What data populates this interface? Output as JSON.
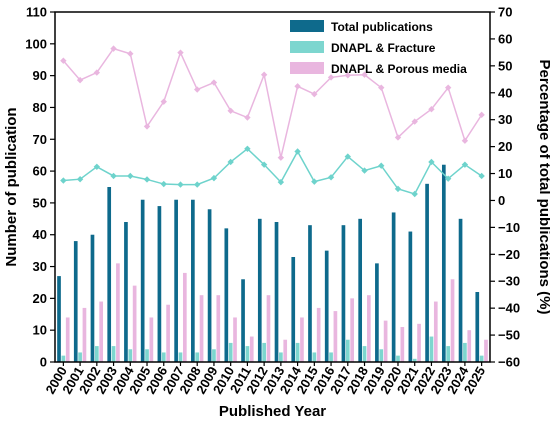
{
  "chart_data": {
    "type": "bar",
    "xlabel": "Published Year",
    "ylabel": "Number of publication",
    "y2label": "Percentage of total  publications (%)",
    "ylim": [
      0,
      110
    ],
    "y2lim": [
      -60,
      70
    ],
    "yticks": [
      0,
      10,
      20,
      30,
      40,
      50,
      60,
      70,
      80,
      90,
      100,
      110
    ],
    "y2ticks": [
      -60,
      -50,
      -40,
      -30,
      -20,
      -10,
      0,
      10,
      20,
      30,
      40,
      50,
      60,
      70
    ],
    "categories": [
      "2000",
      "2001",
      "2002",
      "2003",
      "2004",
      "2005",
      "2006",
      "2007",
      "2008",
      "2009",
      "2010",
      "2011",
      "2012",
      "2013",
      "2014",
      "2015",
      "2016",
      "2017",
      "2018",
      "2019",
      "2020",
      "2021",
      "2022",
      "2023",
      "2024",
      "2025"
    ],
    "series": [
      {
        "name": "Total publications",
        "kind": "bar",
        "axis": "left",
        "color": "#0e6a8c",
        "values": [
          27,
          38,
          40,
          55,
          44,
          51,
          49,
          51,
          51,
          48,
          42,
          26,
          45,
          44,
          33,
          43,
          35,
          43,
          45,
          31,
          47,
          41,
          56,
          62,
          45,
          22
        ]
      },
      {
        "name": "DNAPL & Fracture",
        "kind": "bar",
        "axis": "left",
        "color": "#7dd6cf",
        "values": [
          2,
          3,
          5,
          5,
          4,
          4,
          3,
          3,
          3,
          4,
          6,
          5,
          6,
          3,
          6,
          3,
          3,
          7,
          5,
          4,
          2,
          1,
          8,
          5,
          6,
          2
        ]
      },
      {
        "name": "DNAPL & Porous media",
        "kind": "bar",
        "axis": "left",
        "color": "#e9b6df",
        "values": [
          14,
          17,
          19,
          31,
          24,
          14,
          18,
          28,
          21,
          21,
          14,
          8,
          21,
          7,
          14,
          17,
          16,
          20,
          21,
          13,
          11,
          12,
          19,
          26,
          10,
          7
        ]
      },
      {
        "name": "DNAPL & Fracture (%)",
        "kind": "line",
        "axis": "right",
        "color": "#6ed3cc",
        "values": [
          7.4,
          7.9,
          12.5,
          9.1,
          9.1,
          7.8,
          6.1,
          5.9,
          5.9,
          8.3,
          14.3,
          19.2,
          13.3,
          6.8,
          18.2,
          7.0,
          8.6,
          16.3,
          11.1,
          12.9,
          4.3,
          2.4,
          14.3,
          8.1,
          13.3,
          9.1
        ]
      },
      {
        "name": "DNAPL & Porous media (%)",
        "kind": "line",
        "axis": "right",
        "color": "#e9b6df",
        "values": [
          51.9,
          44.7,
          47.5,
          56.4,
          54.5,
          27.5,
          36.7,
          54.9,
          41.2,
          43.8,
          33.3,
          30.8,
          46.7,
          15.9,
          42.4,
          39.5,
          45.7,
          46.5,
          46.7,
          41.9,
          23.4,
          29.3,
          33.9,
          41.9,
          22.2,
          31.8
        ]
      }
    ],
    "legend_position": "top-right",
    "legend": [
      "Total publications",
      "DNAPL & Fracture",
      "DNAPL & Porous media"
    ],
    "grid": false
  }
}
